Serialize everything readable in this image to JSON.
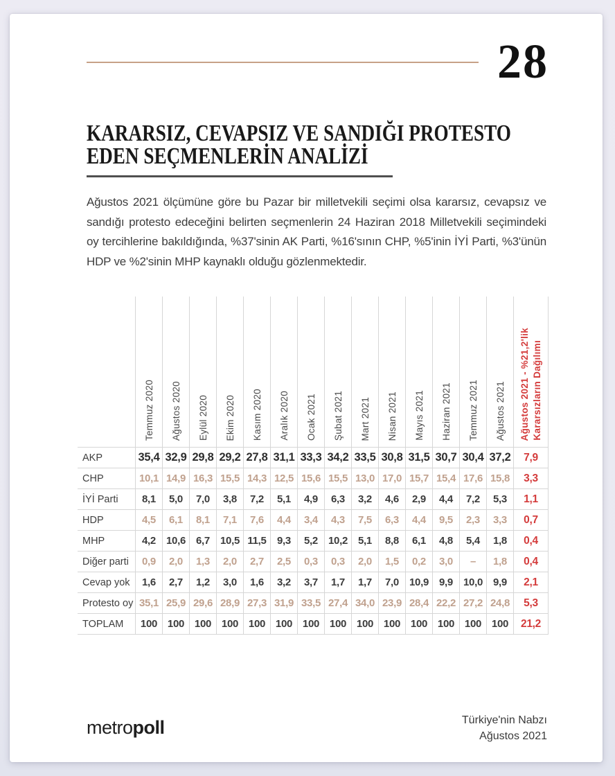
{
  "page": {
    "number": "28"
  },
  "title": {
    "line1": "KARARSIZ, CEVAPSIZ VE SANDIĞI PROTESTO",
    "line2": "EDEN SEÇMENLERİN ANALİZİ"
  },
  "intro": "Ağustos 2021 ölçümüne göre bu Pazar bir milletvekili seçimi olsa kararsız, cevapsız ve sandığı protesto edeceğini belirten seçmenlerin 24 Haziran 2018 Milletvekili seçimindeki oy tercihlerine bakıldığında, %37'sinin AK Parti, %16'sının CHP, %5'inin İYİ Parti, %3'ünün HDP ve %2'sinin MHP kaynaklı olduğu gözlenmektedir.",
  "table": {
    "month_headers": [
      "Temmuz 2020",
      "Ağustos 2020",
      "Eylül 2020",
      "Ekim 2020",
      "Kasım 2020",
      "Aralık 2020",
      "Ocak 2021",
      "Şubat 2021",
      "Mart 2021",
      "Nisan 2021",
      "Mayıs 2021",
      "Haziran 2021",
      "Temmuz 2021",
      "Ağustos 2021"
    ],
    "red_header_line1": "Ağustos 2021 - %21,2'lik",
    "red_header_line2": "Kararsızların Dağılımı",
    "rows": [
      {
        "label": "AKP",
        "tone": "akp",
        "values": [
          "35,4",
          "32,9",
          "29,8",
          "29,2",
          "27,8",
          "31,1",
          "33,3",
          "34,2",
          "33,5",
          "30,8",
          "31,5",
          "30,7",
          "30,4",
          "37,2"
        ],
        "red": "7,9"
      },
      {
        "label": "CHP",
        "tone": "tan",
        "values": [
          "10,1",
          "14,9",
          "16,3",
          "15,5",
          "14,3",
          "12,5",
          "15,6",
          "15,5",
          "13,0",
          "17,0",
          "15,7",
          "15,4",
          "17,6",
          "15,8"
        ],
        "red": "3,3"
      },
      {
        "label": "İYİ Parti",
        "tone": "dark",
        "values": [
          "8,1",
          "5,0",
          "7,0",
          "3,8",
          "7,2",
          "5,1",
          "4,9",
          "6,3",
          "3,2",
          "4,6",
          "2,9",
          "4,4",
          "7,2",
          "5,3"
        ],
        "red": "1,1"
      },
      {
        "label": "HDP",
        "tone": "tan",
        "values": [
          "4,5",
          "6,1",
          "8,1",
          "7,1",
          "7,6",
          "4,4",
          "3,4",
          "4,3",
          "7,5",
          "6,3",
          "4,4",
          "9,5",
          "2,3",
          "3,3"
        ],
        "red": "0,7"
      },
      {
        "label": "MHP",
        "tone": "dark",
        "values": [
          "4,2",
          "10,6",
          "6,7",
          "10,5",
          "11,5",
          "9,3",
          "5,2",
          "10,2",
          "5,1",
          "8,8",
          "6,1",
          "4,8",
          "5,4",
          "1,8"
        ],
        "red": "0,4"
      },
      {
        "label": "Diğer parti",
        "tone": "tan",
        "values": [
          "0,9",
          "2,0",
          "1,3",
          "2,0",
          "2,7",
          "2,5",
          "0,3",
          "0,3",
          "2,0",
          "1,5",
          "0,2",
          "3,0",
          "–",
          "1,8"
        ],
        "red": "0,4"
      },
      {
        "label": "Cevap yok",
        "tone": "dark",
        "values": [
          "1,6",
          "2,7",
          "1,2",
          "3,0",
          "1,6",
          "3,2",
          "3,7",
          "1,7",
          "1,7",
          "7,0",
          "10,9",
          "9,9",
          "10,0",
          "9,9"
        ],
        "red": "2,1"
      },
      {
        "label": "Protesto oy",
        "tone": "tan",
        "values": [
          "35,1",
          "25,9",
          "29,6",
          "28,9",
          "27,3",
          "31,9",
          "33,5",
          "27,4",
          "34,0",
          "23,9",
          "28,4",
          "22,2",
          "27,2",
          "24,8"
        ],
        "red": "5,3"
      },
      {
        "label": "TOPLAM",
        "tone": "dark",
        "values": [
          "100",
          "100",
          "100",
          "100",
          "100",
          "100",
          "100",
          "100",
          "100",
          "100",
          "100",
          "100",
          "100",
          "100"
        ],
        "red": "21,2"
      }
    ]
  },
  "footer": {
    "logo_light": "metro",
    "logo_bold": "poll",
    "right_line1": "Türkiye'nin Nabzı",
    "right_line2": "Ağustos 2021"
  },
  "colors": {
    "accent_tan_rule": "#c7a187",
    "muted_row_values": "#c0a18e",
    "red_highlight": "#d43b3b",
    "table_grid": "#d6d6d6",
    "page_background": "#ffffff",
    "canvas_background": "#e9e9f1"
  }
}
